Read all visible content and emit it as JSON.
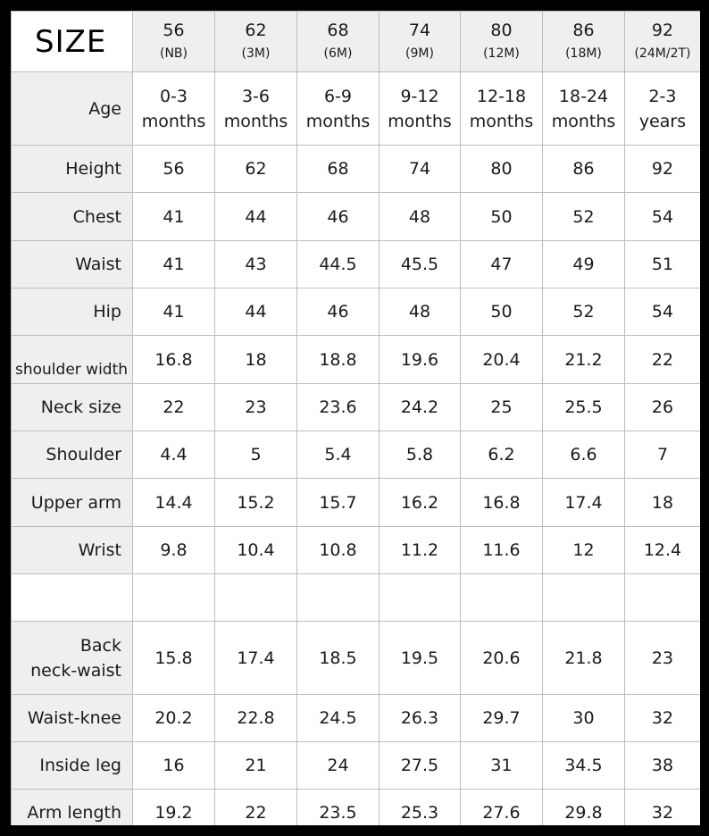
{
  "title": "SIZE",
  "sizes": [
    {
      "size": "56",
      "label": "(NB)"
    },
    {
      "size": "62",
      "label": "(3M)"
    },
    {
      "size": "68",
      "label": "(6M)"
    },
    {
      "size": "74",
      "label": "(9M)"
    },
    {
      "size": "80",
      "label": "(12M)"
    },
    {
      "size": "86",
      "label": "(18M)"
    },
    {
      "size": "92",
      "label": "(24M/2T)"
    }
  ],
  "rows": [
    {
      "label": "Age",
      "values": [
        "0-3 months",
        "3-6 months",
        "6-9 months",
        "9-12 months",
        "12-18 months",
        "18-24 months",
        "2-3 years"
      ]
    },
    {
      "label": "Height",
      "values": [
        "56",
        "62",
        "68",
        "74",
        "80",
        "86",
        "92"
      ]
    },
    {
      "label": "Chest",
      "values": [
        "41",
        "44",
        "46",
        "48",
        "50",
        "52",
        "54"
      ]
    },
    {
      "label": "Waist",
      "values": [
        "41",
        "43",
        "44.5",
        "45.5",
        "47",
        "49",
        "51"
      ]
    },
    {
      "label": "Hip",
      "values": [
        "41",
        "44",
        "46",
        "48",
        "50",
        "52",
        "54"
      ]
    },
    {
      "label": "shoulder width",
      "values": [
        "16.8",
        "18",
        "18.8",
        "19.6",
        "20.4",
        "21.2",
        "22"
      ]
    },
    {
      "label": "Neck size",
      "values": [
        "22",
        "23",
        "23.6",
        "24.2",
        "25",
        "25.5",
        "26"
      ]
    },
    {
      "label": "Shoulder",
      "values": [
        "4.4",
        "5",
        "5.4",
        "5.8",
        "6.2",
        "6.6",
        "7"
      ]
    },
    {
      "label": "Upper arm",
      "values": [
        "14.4",
        "15.2",
        "15.7",
        "16.2",
        "16.8",
        "17.4",
        "18"
      ]
    },
    {
      "label": "Wrist",
      "values": [
        "9.8",
        "10.4",
        "10.8",
        "11.2",
        "11.6",
        "12",
        "12.4"
      ]
    },
    {
      "label": "",
      "values": [
        "",
        "",
        "",
        "",
        "",
        "",
        ""
      ]
    },
    {
      "label": "Back neck-waist",
      "values": [
        "15.8",
        "17.4",
        "18.5",
        "19.5",
        "20.6",
        "21.8",
        "23"
      ]
    },
    {
      "label": "Waist-knee",
      "values": [
        "20.2",
        "22.8",
        "24.5",
        "26.3",
        "29.7",
        "30",
        "32"
      ]
    },
    {
      "label": "Inside leg",
      "values": [
        "16",
        "21",
        "24",
        "27.5",
        "31",
        "34.5",
        "38"
      ]
    },
    {
      "label": "Arm length",
      "values": [
        "19.2",
        "22",
        "23.5",
        "25.3",
        "27.6",
        "29.8",
        "32"
      ]
    }
  ]
}
